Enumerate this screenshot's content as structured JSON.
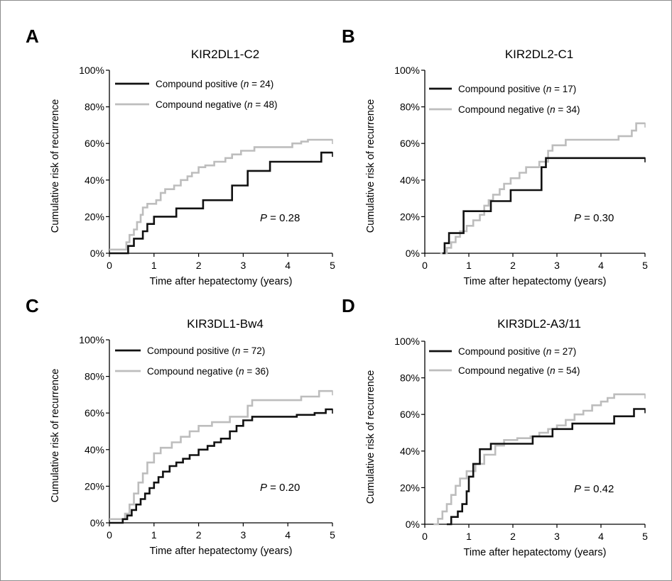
{
  "chart_data": [
    {
      "type": "line",
      "panel": "A",
      "title": "KIR2DL1-C2",
      "xlabel": "Time after hepatectomy (years)",
      "ylabel": "Cumulative risk of recurrence",
      "xlim": [
        0,
        5
      ],
      "ylim": [
        0,
        100
      ],
      "xticks": [
        "0",
        "1",
        "2",
        "3",
        "4",
        "5"
      ],
      "yticks": [
        "0%",
        "20%",
        "40%",
        "60%",
        "80%",
        "100%"
      ],
      "annotation": {
        "prefix": "P",
        "text": " = 0.28"
      },
      "legend_placement": "top",
      "series": [
        {
          "name": "Compound positive",
          "n_label": "n",
          "n_text": " = 24)",
          "color": "#111111",
          "x": [
            0,
            0.42,
            0.55,
            0.75,
            0.85,
            1.0,
            1.5,
            2.1,
            2.75,
            3.1,
            3.6,
            4.75,
            5.0
          ],
          "y": [
            0,
            4,
            8,
            12,
            16,
            20,
            24.5,
            29,
            37,
            45,
            50,
            55,
            55
          ]
        },
        {
          "name": "Compound negative",
          "n_label": "n",
          "n_text": " = 48)",
          "color": "#bdbdbd",
          "x": [
            0,
            0.38,
            0.45,
            0.55,
            0.62,
            0.7,
            0.75,
            0.85,
            1.05,
            1.15,
            1.25,
            1.45,
            1.6,
            1.75,
            1.85,
            2.0,
            2.15,
            2.35,
            2.6,
            2.75,
            2.95,
            3.05,
            3.25,
            3.6,
            4.1,
            4.3,
            4.45,
            5.0
          ],
          "y": [
            2,
            6,
            10,
            13,
            17,
            21,
            25,
            27,
            29,
            33,
            35,
            37,
            40,
            42,
            44,
            47,
            48,
            50,
            52,
            54,
            56,
            56,
            58,
            58,
            60,
            61,
            62,
            62
          ]
        }
      ]
    },
    {
      "type": "line",
      "panel": "B",
      "title": "KIR2DL2-C1",
      "xlabel": "Time after hepatectomy (years)",
      "ylabel": "Cumulative risk of recurrence",
      "xlim": [
        0,
        5
      ],
      "ylim": [
        0,
        100
      ],
      "xticks": [
        "0",
        "1",
        "2",
        "3",
        "4",
        "5"
      ],
      "yticks": [
        "0%",
        "20%",
        "40%",
        "60%",
        "80%",
        "100%"
      ],
      "annotation": {
        "prefix": "P",
        "text": " = 0.30"
      },
      "legend_placement": "top",
      "series": [
        {
          "name": "Compound positive",
          "n_label": "n",
          "n_text": " = 17)",
          "color": "#111111",
          "x": [
            0.4,
            0.45,
            0.55,
            0.7,
            0.88,
            1.15,
            1.5,
            1.95,
            2.65,
            2.75,
            5.0
          ],
          "y": [
            0,
            5.5,
            11,
            11,
            23,
            23,
            28.5,
            34.5,
            47,
            52,
            52
          ]
        },
        {
          "name": "Compound negative",
          "n_label": "n",
          "n_text": " = 34)",
          "color": "#bdbdbd",
          "x": [
            0.35,
            0.5,
            0.6,
            0.7,
            0.8,
            0.95,
            1.1,
            1.25,
            1.35,
            1.45,
            1.55,
            1.7,
            1.8,
            1.95,
            2.15,
            2.3,
            2.6,
            2.8,
            2.9,
            3.2,
            4.4,
            4.7,
            4.8,
            5.0
          ],
          "y": [
            0,
            3,
            6,
            9,
            12,
            15,
            18,
            21,
            26,
            29,
            32,
            35,
            38,
            41,
            44,
            47,
            50,
            56,
            59,
            62,
            64,
            67,
            71,
            71
          ]
        }
      ]
    },
    {
      "type": "line",
      "panel": "C",
      "title": "KIR3DL1-Bw4",
      "xlabel": "Time after hepatectomy (years)",
      "ylabel": "Cumulative risk of recurrence",
      "xlim": [
        0,
        5
      ],
      "ylim": [
        0,
        100
      ],
      "xticks": [
        "0",
        "1",
        "2",
        "3",
        "4",
        "5"
      ],
      "yticks": [
        "0%",
        "20%",
        "40%",
        "60%",
        "80%",
        "100%"
      ],
      "annotation": {
        "prefix": "P",
        "text": " = 0.20"
      },
      "legend_placement": "top",
      "series": [
        {
          "name": "Compound positive",
          "n_label": "n",
          "n_text": " = 72)",
          "color": "#111111",
          "x": [
            0,
            0.3,
            0.4,
            0.5,
            0.6,
            0.7,
            0.8,
            0.9,
            1.0,
            1.1,
            1.2,
            1.35,
            1.5,
            1.65,
            1.8,
            2.0,
            2.2,
            2.35,
            2.5,
            2.7,
            2.85,
            3.0,
            3.2,
            4.2,
            4.6,
            4.85,
            5.0
          ],
          "y": [
            0,
            2,
            4,
            7,
            10,
            13,
            16,
            19,
            22,
            25,
            28,
            31,
            33,
            35,
            37,
            40,
            42,
            44,
            46,
            50,
            53,
            56,
            58,
            59,
            60,
            62,
            62
          ]
        },
        {
          "name": "Compound negative",
          "n_label": "n",
          "n_text": " = 36)",
          "color": "#bdbdbd",
          "x": [
            0,
            0.35,
            0.45,
            0.55,
            0.65,
            0.75,
            0.85,
            1.0,
            1.15,
            1.4,
            1.6,
            1.8,
            2.0,
            2.3,
            2.7,
            3.1,
            3.2,
            4.3,
            4.7,
            5.0
          ],
          "y": [
            2,
            5,
            10,
            16,
            22,
            27,
            33,
            38,
            41,
            44,
            47,
            50,
            53,
            55,
            58,
            64,
            67,
            69,
            72,
            72
          ]
        }
      ]
    },
    {
      "type": "line",
      "panel": "D",
      "title": "KIR3DL2-A3/11",
      "xlabel": "Time after hepatectomy (years)",
      "ylabel": "Cumulative risk of recurrence",
      "xlim": [
        0,
        5
      ],
      "ylim": [
        0,
        100
      ],
      "xticks": [
        "0",
        "1",
        "2",
        "3",
        "4",
        "5"
      ],
      "yticks": [
        "0%",
        "20%",
        "40%",
        "60%",
        "80%",
        "100%"
      ],
      "annotation": {
        "prefix": "P",
        "text": " = 0.42"
      },
      "legend_placement": "top",
      "series": [
        {
          "name": "Compound positive",
          "n_label": "n",
          "n_text": " = 27)",
          "color": "#111111",
          "x": [
            0.5,
            0.6,
            0.75,
            0.85,
            0.95,
            1.0,
            1.1,
            1.25,
            1.5,
            2.45,
            2.9,
            3.35,
            4.3,
            4.75,
            5.0
          ],
          "y": [
            0,
            4,
            7,
            11,
            18,
            26,
            33,
            41,
            44,
            48,
            52,
            55,
            59,
            63,
            63
          ]
        },
        {
          "name": "Compound negative",
          "n_label": "n",
          "n_text": " = 54)",
          "color": "#bdbdbd",
          "x": [
            0.2,
            0.3,
            0.4,
            0.5,
            0.6,
            0.7,
            0.8,
            0.95,
            1.15,
            1.35,
            1.6,
            1.8,
            2.1,
            2.4,
            2.6,
            2.8,
            3.0,
            3.2,
            3.4,
            3.6,
            3.8,
            4.0,
            4.15,
            4.3,
            5.0
          ],
          "y": [
            0,
            3,
            7,
            11,
            16,
            21,
            25,
            29,
            33,
            38,
            43,
            46,
            47,
            48,
            50,
            52,
            54,
            57,
            60,
            62,
            65,
            67,
            69,
            71,
            71
          ]
        }
      ]
    }
  ]
}
